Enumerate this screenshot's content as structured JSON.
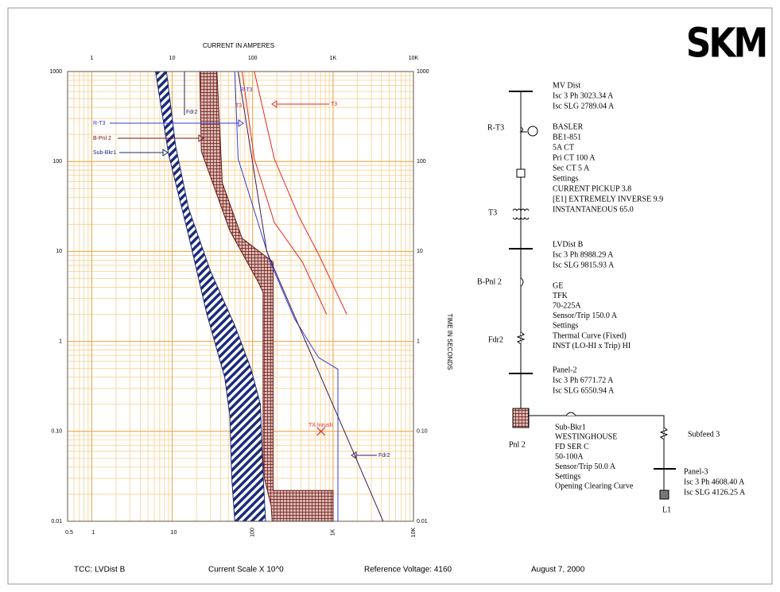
{
  "chart_data": {
    "type": "line",
    "x_label": "CURRENT IN AMPERES",
    "y_label": "TIME IN SECONDS",
    "log_x": true,
    "log_y": true,
    "grid": true,
    "xlim": [
      0.5,
      10000
    ],
    "xticks": [
      0.5,
      1,
      10,
      100,
      {
        "value": 1000,
        "label": "1K"
      },
      {
        "value": 10000,
        "label": "10K"
      }
    ],
    "ylim": [
      0.01,
      1000
    ],
    "yticks": [
      0.01,
      {
        "value": 0.1,
        "label": "0.10"
      },
      1,
      10,
      100,
      1000
    ],
    "series": [
      {
        "name": "Sub-Bkr1",
        "color": "#1b2a7a",
        "fill": "hatch",
        "x": [
          6.2,
          9,
          16,
          27,
          45,
          52,
          55,
          60,
          145,
          132,
          125,
          95,
          60,
          30,
          16,
          11,
          8.5
        ],
        "values": [
          1000,
          120,
          15,
          2,
          0.4,
          0.15,
          0.03,
          0.01,
          0.01,
          0.05,
          0.2,
          0.5,
          1.5,
          6,
          30,
          150,
          1000
        ]
      },
      {
        "name": "B-Pnl 2",
        "color": "#6b1414",
        "fill": "crosshatch",
        "x": [
          22,
          23,
          52,
          117,
          135,
          135,
          140,
          170,
          175,
          1000,
          1000,
          180,
          180,
          74,
          42,
          36
        ],
        "values": [
          1000,
          130,
          17,
          4.6,
          3.5,
          0.05,
          0.03,
          0.015,
          0.01,
          0.01,
          0.022,
          0.022,
          7.6,
          14,
          58,
          1000
        ]
      },
      {
        "name": "R-T3",
        "color": "#2f3fd8",
        "fill": "none",
        "x": [
          60,
          66,
          166,
          330,
          661,
          1150,
          1150
        ],
        "values": [
          1000,
          107,
          7.6,
          1.8,
          0.66,
          0.49,
          0.01
        ]
      },
      {
        "name": "T3",
        "color": "#e8261f",
        "fill": "none",
        "x": [
          74,
          105,
          186,
          417,
          832
        ],
        "values": [
          1000,
          107,
          21,
          7.6,
          2.0
        ]
      },
      {
        "name": "T3",
        "color": "#e8261f",
        "fill": "none",
        "x": [
          105,
          186,
          372,
          661,
          1480
        ],
        "values": [
          1000,
          107,
          25,
          9.3,
          2.0
        ]
      },
      {
        "name": "Fdr2",
        "color": "#3a1a5a",
        "fill": "none",
        "x": [
          66,
          150,
          4200
        ],
        "values": [
          1000,
          10,
          0.01
        ]
      },
      {
        "name": "TX Inrush",
        "color": "#e8261f",
        "fill": "none",
        "marker": "x",
        "x": [
          708
        ],
        "values": [
          0.1
        ]
      }
    ]
  },
  "diagram": {
    "mv_dist": [
      "MV Dist",
      "Isc 3 Ph 3023.34 A",
      "Isc SLG 2789.04 A"
    ],
    "relay_label": "R-T3",
    "relay": [
      "BASLER",
      "BE1-851",
      "5A CT",
      "Pri CT 100 A",
      "Sec CT 5 A",
      "Settings",
      "CURRENT PICKUP 3.8",
      "[E1] EXTREMELY INVERSE 9.9",
      "INSTANTANEOUS 65.0"
    ],
    "transformer_label": "T3",
    "lv_dist": [
      "LVDist B",
      "Isc 3 Ph 8988.29 A",
      "Isc SLG 9815.93 A"
    ],
    "breaker_label": "B-Pnl 2",
    "breaker": [
      "GE",
      "TFK",
      "70-225A",
      "Sensor/Trip 150.0 A",
      "Settings",
      "Thermal Curve (Fixed)",
      "INST (LO-HI x Trip) HI"
    ],
    "feeder_label": "Fdr2",
    "panel2": [
      "Panel-2",
      "Isc 3 Ph 6771.72 A",
      "Isc SLG 6550.94 A"
    ],
    "panel2_label": "Pnl 2",
    "sub_breaker": [
      "Sub-Bkr1",
      "WESTINGHOUSE",
      "FD   SER C",
      "50-100A",
      "Sensor/Trip 50.0 A",
      "Settings",
      "Opening Clearing Curve"
    ],
    "subfeed_label": "Subfeed 3",
    "panel3": [
      "Panel-3",
      "Isc 3 Ph 4608.40 A",
      "Isc SLG 4126.25 A"
    ],
    "load_label": "L1"
  },
  "footer": [
    "TCC:  LVDist B",
    "Current Scale  X 10^0",
    "Reference Voltage: 4160",
    "August 7, 2000"
  ],
  "logo": "SKM"
}
